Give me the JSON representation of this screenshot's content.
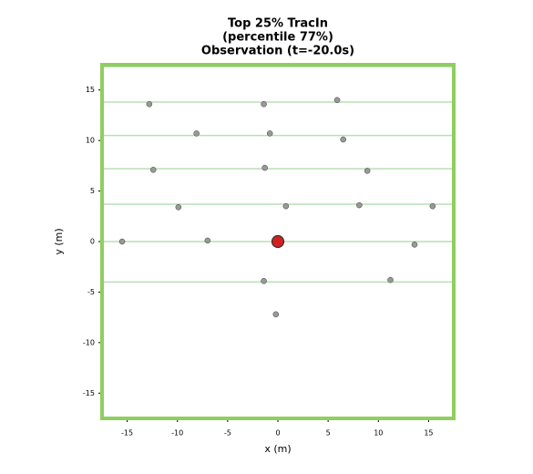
{
  "chart_data": {
    "type": "scatter",
    "title": [
      "Top 25% TracIn",
      "(percentile 77%)",
      "Observation (t=-20.0s)"
    ],
    "x_label": "x (m)",
    "y_label": "y (m)",
    "xlim": [
      -17.5,
      17.5
    ],
    "ylim": [
      -17.5,
      17.5
    ],
    "xticks": [
      -15,
      -10,
      -5,
      0,
      5,
      10,
      15
    ],
    "yticks": [
      -15,
      -10,
      -5,
      0,
      5,
      10,
      15
    ],
    "frame_color": "#8fce60",
    "lanes": {
      "color": "#b9dfb3",
      "values": [
        17.3,
        13.8,
        10.5,
        7.2,
        3.7,
        0,
        -4.0
      ]
    },
    "series": [
      {
        "color": "#999999",
        "size": 3,
        "x": [
          -12.8,
          -1.4,
          5.9,
          -8.1,
          -0.8,
          6.5,
          -12.4,
          -1.3,
          8.9,
          -9.9,
          0.8,
          8.1,
          15.4,
          -15.5,
          -7.0,
          13.6,
          -1.4,
          11.2,
          -0.2
        ],
        "values": [
          13.6,
          13.6,
          14.0,
          10.7,
          10.7,
          10.1,
          7.1,
          7.3,
          7.0,
          3.4,
          3.5,
          3.6,
          3.5,
          0.0,
          0.1,
          -0.3,
          -3.9,
          -3.8,
          -7.2
        ]
      },
      {
        "color": "#d62020",
        "size": 6.5,
        "x": [
          0
        ],
        "values": [
          0
        ]
      }
    ]
  }
}
